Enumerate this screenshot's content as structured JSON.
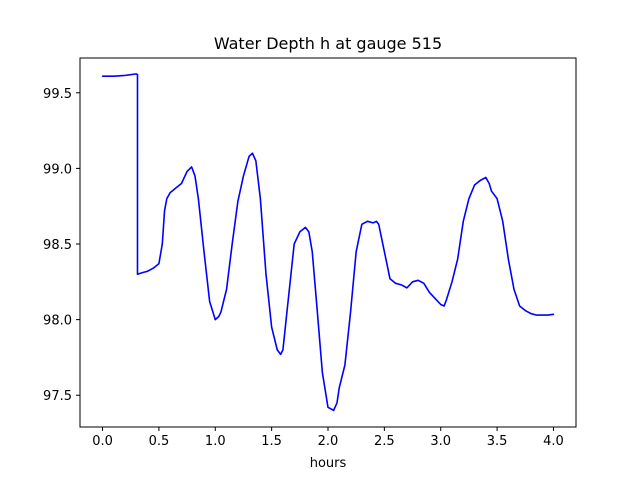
{
  "chart_data": {
    "type": "line",
    "title": "Water Depth h at gauge 515",
    "xlabel": "hours",
    "ylabel": "",
    "xlim": [
      -0.2,
      4.2
    ],
    "ylim": [
      97.29,
      99.73
    ],
    "x_ticks": [
      0.0,
      0.5,
      1.0,
      1.5,
      2.0,
      2.5,
      3.0,
      3.5,
      4.0
    ],
    "x_tick_labels": [
      "0.0",
      "0.5",
      "1.0",
      "1.5",
      "2.0",
      "2.5",
      "3.0",
      "3.5",
      "4.0"
    ],
    "y_ticks": [
      97.5,
      98.0,
      98.5,
      99.0,
      99.5
    ],
    "y_tick_labels": [
      "97.5",
      "98.0",
      "98.5",
      "99.0",
      "99.5"
    ],
    "grid": false,
    "legend": "none",
    "series": [
      {
        "color": "#0000ff",
        "x": [
          0.0,
          0.1,
          0.2,
          0.3,
          0.31,
          0.31,
          0.35,
          0.4,
          0.45,
          0.5,
          0.53,
          0.55,
          0.57,
          0.6,
          0.65,
          0.7,
          0.75,
          0.79,
          0.82,
          0.85,
          0.9,
          0.95,
          1.0,
          1.03,
          1.05,
          1.1,
          1.15,
          1.2,
          1.25,
          1.3,
          1.33,
          1.36,
          1.4,
          1.45,
          1.5,
          1.55,
          1.58,
          1.6,
          1.65,
          1.7,
          1.75,
          1.8,
          1.83,
          1.86,
          1.9,
          1.95,
          2.0,
          2.05,
          2.08,
          2.1,
          2.15,
          2.2,
          2.25,
          2.3,
          2.35,
          2.4,
          2.43,
          2.45,
          2.5,
          2.55,
          2.6,
          2.65,
          2.7,
          2.75,
          2.8,
          2.85,
          2.9,
          2.95,
          3.0,
          3.03,
          3.05,
          3.1,
          3.15,
          3.2,
          3.25,
          3.3,
          3.35,
          3.4,
          3.43,
          3.45,
          3.5,
          3.55,
          3.6,
          3.65,
          3.7,
          3.75,
          3.8,
          3.85,
          3.9,
          3.95,
          4.0
        ],
        "y": [
          99.61,
          99.61,
          99.615,
          99.625,
          99.62,
          98.3,
          98.31,
          98.32,
          98.34,
          98.37,
          98.5,
          98.72,
          98.8,
          98.84,
          98.87,
          98.9,
          98.98,
          99.01,
          98.95,
          98.8,
          98.45,
          98.12,
          98.0,
          98.02,
          98.05,
          98.2,
          98.5,
          98.78,
          98.95,
          99.08,
          99.1,
          99.05,
          98.8,
          98.3,
          97.95,
          97.8,
          97.77,
          97.8,
          98.15,
          98.5,
          98.58,
          98.61,
          98.58,
          98.45,
          98.1,
          97.65,
          97.42,
          97.4,
          97.45,
          97.55,
          97.7,
          98.05,
          98.45,
          98.63,
          98.65,
          98.64,
          98.65,
          98.63,
          98.45,
          98.27,
          98.24,
          98.23,
          98.21,
          98.25,
          98.26,
          98.24,
          98.18,
          98.14,
          98.1,
          98.09,
          98.13,
          98.25,
          98.4,
          98.65,
          98.8,
          98.89,
          98.92,
          98.94,
          98.9,
          98.85,
          98.8,
          98.65,
          98.4,
          98.2,
          98.09,
          98.06,
          98.04,
          98.03,
          98.03,
          98.03,
          98.035
        ]
      }
    ]
  }
}
